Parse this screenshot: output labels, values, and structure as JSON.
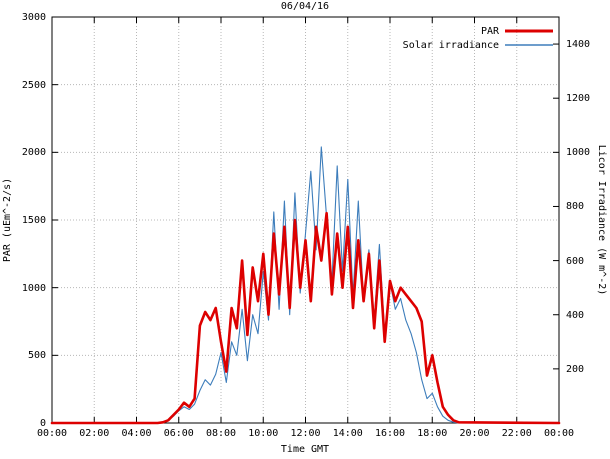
{
  "chart_data": {
    "type": "line",
    "title": "06/04/16",
    "xlabel": "Time GMT",
    "ylabel_left": "PAR (uEm^-2/s)",
    "ylabel_right": "Licor Irradiance (W m^-2)",
    "xlim_hours": [
      0,
      24
    ],
    "x_tick_hours": [
      0,
      2,
      4,
      6,
      8,
      10,
      12,
      14,
      16,
      18,
      20,
      22,
      24
    ],
    "x_tick_labels": [
      "00:00",
      "02:00",
      "04:00",
      "06:00",
      "08:00",
      "10:00",
      "12:00",
      "14:00",
      "16:00",
      "18:00",
      "20:00",
      "22:00",
      "00:00"
    ],
    "ylim_left": [
      0,
      3000
    ],
    "yticks_left": [
      0,
      500,
      1000,
      1500,
      2000,
      2500,
      3000
    ],
    "ylim_right": [
      0,
      1500
    ],
    "yticks_right": [
      200,
      400,
      600,
      800,
      1000,
      1200,
      1400
    ],
    "grid": true,
    "grid_color": "#b8b8b8",
    "border_color": "#000000",
    "legend_position": "top-right",
    "series": [
      {
        "name": "PAR",
        "axis": "left",
        "color": "#dd0000",
        "linewidth": 2.6,
        "x": [
          0,
          4.5,
          5.0,
          5.25,
          5.5,
          5.75,
          6.0,
          6.25,
          6.5,
          6.75,
          7.0,
          7.25,
          7.5,
          7.75,
          8.0,
          8.25,
          8.5,
          8.75,
          9.0,
          9.25,
          9.5,
          9.75,
          10.0,
          10.25,
          10.5,
          10.75,
          11.0,
          11.25,
          11.5,
          11.75,
          12.0,
          12.25,
          12.5,
          12.75,
          13.0,
          13.25,
          13.5,
          13.75,
          14.0,
          14.25,
          14.5,
          14.75,
          15.0,
          15.25,
          15.5,
          15.75,
          16.0,
          16.25,
          16.5,
          16.75,
          17.0,
          17.25,
          17.5,
          17.75,
          18.0,
          18.25,
          18.5,
          18.75,
          19.0,
          19.25,
          24
        ],
        "y": [
          0,
          0,
          0,
          5,
          20,
          60,
          100,
          150,
          120,
          180,
          720,
          820,
          760,
          850,
          600,
          380,
          850,
          700,
          1200,
          650,
          1150,
          900,
          1250,
          800,
          1400,
          950,
          1450,
          850,
          1500,
          1000,
          1350,
          900,
          1450,
          1200,
          1550,
          950,
          1400,
          1000,
          1450,
          850,
          1350,
          900,
          1250,
          700,
          1200,
          600,
          1050,
          900,
          1000,
          950,
          900,
          850,
          750,
          350,
          500,
          300,
          120,
          60,
          20,
          5,
          0
        ]
      },
      {
        "name": "Solar irradiance",
        "axis": "right",
        "color": "#3d7dbb",
        "linewidth": 1.1,
        "x": [
          0,
          4.5,
          5.0,
          5.25,
          5.5,
          5.75,
          6.0,
          6.25,
          6.5,
          6.75,
          7.0,
          7.25,
          7.5,
          7.75,
          8.0,
          8.25,
          8.5,
          8.75,
          9.0,
          9.25,
          9.5,
          9.75,
          10.0,
          10.25,
          10.5,
          10.75,
          11.0,
          11.25,
          11.5,
          11.75,
          12.0,
          12.25,
          12.5,
          12.75,
          13.0,
          13.25,
          13.5,
          13.75,
          14.0,
          14.25,
          14.5,
          14.75,
          15.0,
          15.25,
          15.5,
          15.75,
          16.0,
          16.25,
          16.5,
          16.75,
          17.0,
          17.25,
          17.5,
          17.75,
          18.0,
          18.25,
          18.5,
          18.75,
          19.0,
          19.25,
          24
        ],
        "y": [
          0,
          0,
          0,
          2,
          10,
          25,
          45,
          60,
          50,
          70,
          120,
          160,
          140,
          180,
          260,
          150,
          300,
          250,
          420,
          230,
          400,
          330,
          560,
          380,
          780,
          420,
          820,
          400,
          850,
          480,
          700,
          930,
          640,
          1020,
          760,
          520,
          950,
          560,
          900,
          470,
          820,
          450,
          640,
          380,
          660,
          330,
          520,
          420,
          460,
          380,
          330,
          260,
          160,
          90,
          110,
          60,
          25,
          10,
          3,
          0,
          0
        ]
      }
    ]
  }
}
